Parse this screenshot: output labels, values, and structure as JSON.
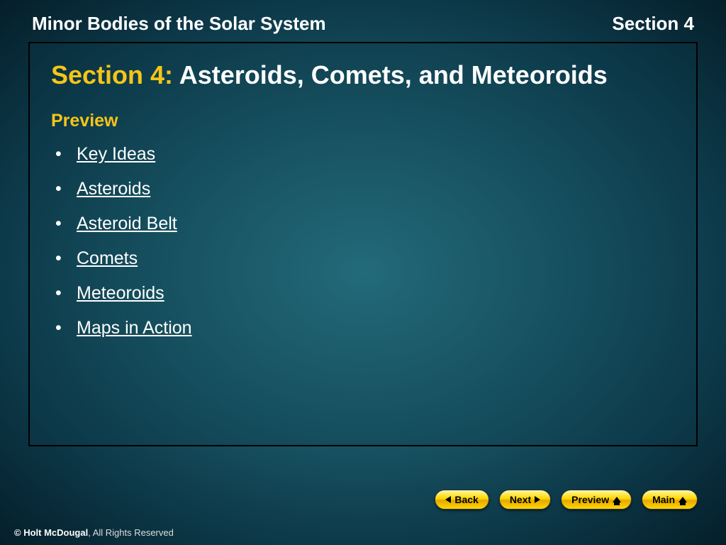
{
  "header": {
    "chapter_title": "Minor Bodies of the Solar System",
    "section_label": "Section 4"
  },
  "slide": {
    "title_prefix": "Section 4:",
    "title_rest": " Asteroids, Comets, and Meteoroids",
    "preview_label": "Preview",
    "links": [
      "Key Ideas",
      "Asteroids",
      "Asteroid Belt",
      "Comets",
      "Meteoroids",
      "Maps in Action"
    ]
  },
  "nav": {
    "back": "Back",
    "next": "Next",
    "preview": "Preview",
    "main": "Main"
  },
  "footer": {
    "publisher": "© Holt McDougal",
    "rights": ", All Rights Reserved"
  },
  "colors": {
    "accent_yellow": "#f5c518",
    "text_white": "#ffffff",
    "button_gold": "#ffd700",
    "frame_border": "#000000"
  }
}
